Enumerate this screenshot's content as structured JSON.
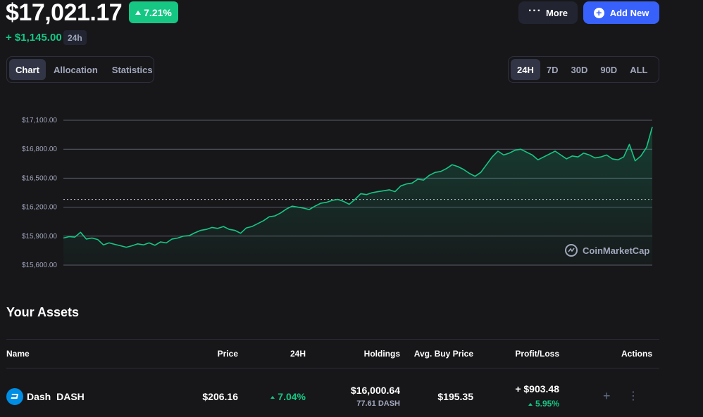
{
  "header": {
    "balance": "$17,021.17",
    "change_pct": "7.21%",
    "change_abs": "+ $1,145.00",
    "period": "24h",
    "more_label": "More",
    "add_new_label": "Add New"
  },
  "view_tabs": [
    {
      "label": "Chart",
      "active": true
    },
    {
      "label": "Allocation",
      "active": false
    },
    {
      "label": "Statistics",
      "active": false
    }
  ],
  "range_tabs": [
    {
      "label": "24H",
      "active": true
    },
    {
      "label": "7D",
      "active": false
    },
    {
      "label": "30D",
      "active": false
    },
    {
      "label": "90D",
      "active": false
    },
    {
      "label": "ALL",
      "active": false
    }
  ],
  "chart_data": {
    "type": "area",
    "ylim": [
      15600,
      17100
    ],
    "yticks": [
      "$17,100.00",
      "$16,800.00",
      "$16,500.00",
      "$16,200.00",
      "$15,900.00",
      "$15,600.00"
    ],
    "ytick_values": [
      17100,
      16800,
      16500,
      16200,
      15900,
      15600
    ],
    "reference_value": 16280,
    "line_color": "#16c784",
    "values": [
      15880,
      15895,
      15890,
      15940,
      15870,
      15880,
      15865,
      15810,
      15830,
      15815,
      15800,
      15785,
      15800,
      15820,
      15810,
      15830,
      15805,
      15840,
      15830,
      15870,
      15880,
      15900,
      15905,
      15935,
      15960,
      15970,
      15990,
      15980,
      16000,
      15970,
      15960,
      15930,
      15985,
      16000,
      16030,
      16060,
      16100,
      16110,
      16140,
      16180,
      16210,
      16200,
      16190,
      16175,
      16210,
      16240,
      16250,
      16270,
      16280,
      16260,
      16230,
      16280,
      16340,
      16330,
      16350,
      16360,
      16370,
      16380,
      16360,
      16420,
      16440,
      16450,
      16490,
      16480,
      16530,
      16560,
      16570,
      16600,
      16640,
      16620,
      16590,
      16550,
      16520,
      16560,
      16640,
      16720,
      16780,
      16740,
      16760,
      16790,
      16800,
      16770,
      16740,
      16690,
      16720,
      16750,
      16780,
      16740,
      16700,
      16730,
      16720,
      16760,
      16740,
      16710,
      16720,
      16740,
      16700,
      16690,
      16720,
      16850,
      16680,
      16730,
      16820,
      17030
    ]
  },
  "brand": {
    "watermark": "CoinMarketCap"
  },
  "assets": {
    "title": "Your Assets",
    "columns": [
      "Name",
      "Price",
      "24H",
      "Holdings",
      "Avg. Buy Price",
      "Profit/Loss",
      "Actions"
    ],
    "rows": [
      {
        "name": "Dash",
        "symbol": "DASH",
        "price": "$206.16",
        "change_24h": "7.04%",
        "holdings_value": "$16,000.64",
        "holdings_amount": "77.61 DASH",
        "avg_buy_price": "$195.35",
        "profit_loss": "+ $903.48",
        "profit_loss_pct": "5.95%"
      }
    ]
  },
  "colors": {
    "background": "#17171a",
    "accent_green": "#16c784",
    "accent_blue": "#3861fb",
    "dash_brand": "#008de4"
  }
}
